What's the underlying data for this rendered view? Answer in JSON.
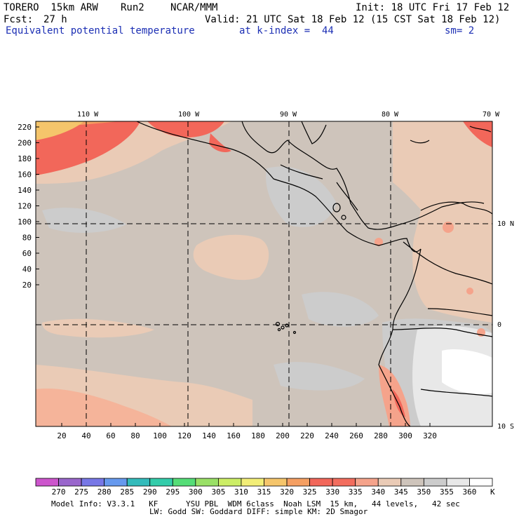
{
  "header": {
    "model": "TORERO  15km ARW",
    "run": "Run2",
    "org": "NCAR/MMM",
    "init": "Init: 18 UTC Fri 17 Feb 12",
    "fcst_label": "Fcst:",
    "fcst_value": "27 h",
    "valid": "Valid: 21 UTC Sat 18 Feb 12 (15 CST Sat 18 Feb 12)",
    "field": "Equivalent potential temperature",
    "level": "at k-index =  44",
    "smooth": "sm= 2"
  },
  "map": {
    "lon_labels": [
      "110 W",
      "100 W",
      "90 W",
      "80 W",
      "70 W"
    ],
    "lat_labels": [
      "10 N",
      "0",
      "10 S"
    ],
    "y_ticks": [
      "220",
      "200",
      "180",
      "160",
      "140",
      "120",
      "100",
      "80",
      "60",
      "40",
      "20"
    ],
    "x_ticks": [
      "20",
      "40",
      "60",
      "80",
      "100",
      "120",
      "140",
      "160",
      "180",
      "200",
      "220",
      "240",
      "260",
      "280",
      "300",
      "320"
    ]
  },
  "legend": {
    "values": [
      "270",
      "275",
      "280",
      "285",
      "290",
      "295",
      "300",
      "305",
      "310",
      "315",
      "320",
      "325",
      "330",
      "335",
      "340",
      "345",
      "350",
      "355",
      "360"
    ],
    "unit": "K",
    "colors": [
      "#cc55cc",
      "#9966cc",
      "#7777e6",
      "#6699ee",
      "#33bbbb",
      "#33ccaa",
      "#55dd77",
      "#99e066",
      "#ccee66",
      "#f2ee77",
      "#f5c56b",
      "#f59f62",
      "#f2675a",
      "#f26d5e",
      "#f5a38b",
      "#eacbb6",
      "#cec4bb",
      "#cccccc",
      "#e8e8e8",
      "#ffffff"
    ]
  },
  "footer": {
    "line1": "Model Info: V3.3.1   KF      YSU PBL  WDM 6class  Noah LSM  15 km,   44 levels,   42 sec",
    "line2": "LW: Godd SW: Goddard DIFF: simple KM: 2D Smagor"
  }
}
